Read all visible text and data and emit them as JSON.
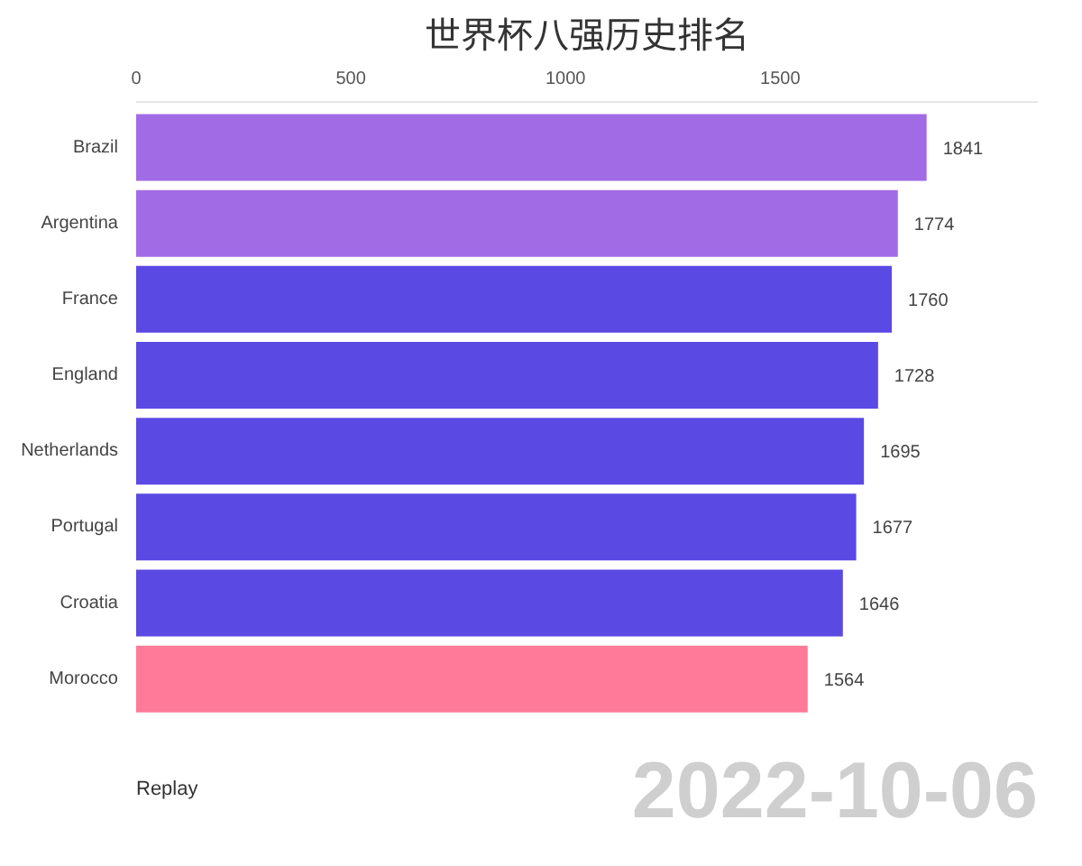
{
  "chart_data": {
    "type": "bar",
    "orientation": "horizontal",
    "title": "世界杯八强历史排名",
    "categories": [
      "Brazil",
      "Argentina",
      "France",
      "England",
      "Netherlands",
      "Portugal",
      "Croatia",
      "Morocco"
    ],
    "values": [
      1841,
      1774,
      1760,
      1728,
      1695,
      1677,
      1646,
      1564
    ],
    "colors": [
      "#a26be6",
      "#a26be6",
      "#5b49e4",
      "#5b49e4",
      "#5b49e4",
      "#5b49e4",
      "#5b49e4",
      "#ff7a98"
    ],
    "xlim": [
      0,
      2100
    ],
    "xticks": [
      0,
      500,
      1000,
      1500
    ],
    "data_labels": true,
    "annotations": [
      "2022-10-06",
      "Replay"
    ]
  }
}
